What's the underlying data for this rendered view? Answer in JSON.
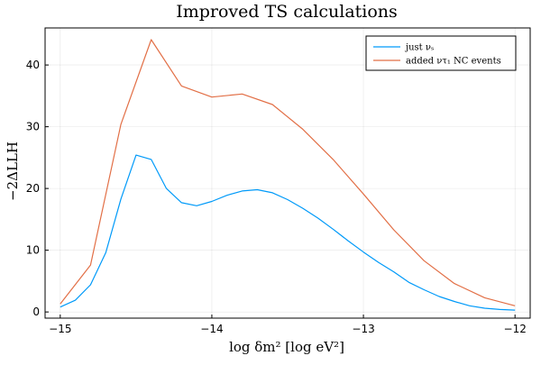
{
  "chart_data": {
    "type": "line",
    "title": "Improved TS calculations",
    "xlabel": "log δm² [log eV²]",
    "ylabel": "−2ΔLLH",
    "xlim": [
      -15.1,
      -11.9
    ],
    "ylim": [
      -1,
      46
    ],
    "xticks": [
      -15,
      -14,
      -13,
      -12
    ],
    "xtick_labels": [
      "−15",
      "−14",
      "−13",
      "−12"
    ],
    "yticks": [
      0,
      10,
      20,
      30,
      40
    ],
    "ytick_labels": [
      "0",
      "10",
      "20",
      "30",
      "40"
    ],
    "grid": true,
    "legend_position": "top-right",
    "series": [
      {
        "name": "just νₛ",
        "color": "#009af9",
        "x": [
          -15.0,
          -14.9,
          -14.8,
          -14.7,
          -14.6,
          -14.5,
          -14.4,
          -14.3,
          -14.2,
          -14.1,
          -14.0,
          -13.9,
          -13.8,
          -13.7,
          -13.6,
          -13.5,
          -13.4,
          -13.3,
          -13.2,
          -13.1,
          -13.0,
          -12.9,
          -12.8,
          -12.7,
          -12.6,
          -12.5,
          -12.4,
          -12.3,
          -12.2,
          -12.1,
          -12.0
        ],
        "y": [
          0.8,
          1.9,
          4.4,
          9.6,
          18.3,
          25.4,
          24.7,
          20.0,
          17.7,
          17.2,
          17.9,
          18.9,
          19.6,
          19.8,
          19.3,
          18.2,
          16.8,
          15.2,
          13.4,
          11.5,
          9.7,
          8.0,
          6.5,
          4.8,
          3.6,
          2.5,
          1.7,
          1.0,
          0.6,
          0.4,
          0.3
        ]
      },
      {
        "name": "added ντ₁ NC events",
        "color": "#e26f46",
        "x": [
          -15.0,
          -14.8,
          -14.6,
          -14.4,
          -14.2,
          -14.0,
          -13.8,
          -13.6,
          -13.4,
          -13.2,
          -13.0,
          -12.8,
          -12.6,
          -12.4,
          -12.2,
          -12.0
        ],
        "y": [
          1.3,
          7.6,
          30.4,
          44.1,
          36.6,
          34.8,
          35.3,
          33.6,
          29.6,
          24.7,
          19.1,
          13.3,
          8.3,
          4.6,
          2.3,
          1.0
        ]
      }
    ]
  }
}
